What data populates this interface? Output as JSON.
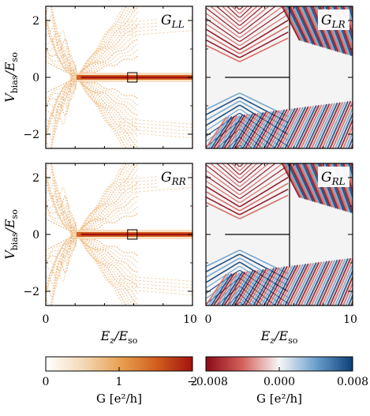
{
  "chart_data": {
    "type": "heatmap",
    "panels": [
      {
        "id": "GLL",
        "label": "G",
        "sub": "LL",
        "colormap": "sequential",
        "features": "local"
      },
      {
        "id": "GLR",
        "label": "G",
        "sub": "LR",
        "colormap": "diverging",
        "features": "nonlocal"
      },
      {
        "id": "GRR",
        "label": "G",
        "sub": "RR",
        "colormap": "sequential",
        "features": "local"
      },
      {
        "id": "GRL",
        "label": "G",
        "sub": "RL",
        "colormap": "diverging",
        "features": "nonlocal"
      }
    ],
    "xaxis": {
      "label_main": "E",
      "label_sub1": "z",
      "label_mid": "/E",
      "label_sub2": "so",
      "range": [
        0,
        10
      ],
      "ticks": [
        "0",
        "10"
      ]
    },
    "yaxis": {
      "label_main": "V",
      "label_sub1": "bias",
      "label_mid": "/E",
      "label_sub2": "so",
      "range": [
        -2.5,
        2.5
      ],
      "ticks": [
        "2",
        "0",
        "−2"
      ]
    },
    "colorbars": [
      {
        "id": "seq",
        "range": [
          0,
          2
        ],
        "ticks": [
          "0",
          "1",
          "2"
        ],
        "label": "G [e²/h]"
      },
      {
        "id": "div",
        "range": [
          -0.008,
          0.008
        ],
        "ticks": [
          "−0.008",
          "0.000",
          "0.008"
        ],
        "label": "G [e²/h]"
      }
    ],
    "colors": {
      "seq": [
        "#ffffff",
        "#f4d9b8",
        "#e8a355",
        "#d2601f",
        "#a3120f"
      ],
      "div": [
        "#8b0a17",
        "#d4625b",
        "#f7f7f7",
        "#6ba0cc",
        "#0b3f78"
      ]
    },
    "features": {
      "zero_bias_peak_start": 2.1,
      "square_marker_x": 5.9,
      "square_marker_v": 0,
      "vertical_line_x": 5.7,
      "horizontal_line_x_range": [
        1.3,
        5.7
      ],
      "horizontal_line_v": 0
    }
  }
}
